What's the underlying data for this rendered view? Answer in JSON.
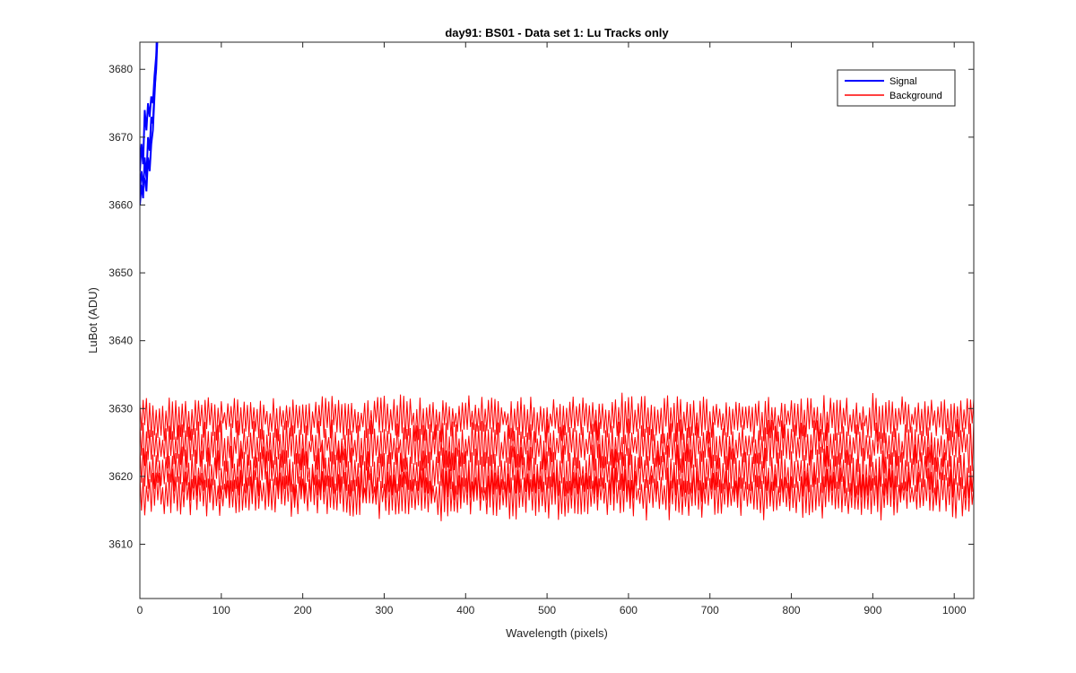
{
  "chart_data": {
    "type": "line",
    "title": "day91: BS01 - Data set 1: Lu Tracks only",
    "xlabel": "Wavelength (pixels)",
    "ylabel": "LuBot (ADU)",
    "xlim": [
      0,
      1024
    ],
    "ylim": [
      3602,
      3684
    ],
    "xticks": [
      0,
      100,
      200,
      300,
      400,
      500,
      600,
      700,
      800,
      900,
      1000
    ],
    "yticks": [
      3610,
      3620,
      3630,
      3640,
      3650,
      3660,
      3670,
      3680
    ],
    "grid": false,
    "legend_position": "top-right",
    "series": [
      {
        "name": "Signal",
        "color": "#0000ff",
        "linewidth": 2,
        "note_points": "rises steeply from ~3660 at x=0 and leaves the top of the axes near x=20",
        "traces": [
          {
            "x": [
              0,
              2,
              4,
              6,
              8,
              10,
              12,
              14,
              16,
              18,
              20,
              22
            ],
            "y": [
              3660,
              3663,
              3661,
              3667,
              3664,
              3670,
              3668,
              3673,
              3672,
              3677,
              3680,
              3686
            ]
          },
          {
            "x": [
              0,
              2,
              4,
              6,
              8,
              10,
              12,
              14,
              16,
              18,
              20,
              22
            ],
            "y": [
              3665,
              3669,
              3666,
              3674,
              3671,
              3675,
              3673,
              3676,
              3675,
              3679,
              3682,
              3688
            ]
          },
          {
            "x": [
              0,
              2,
              4,
              6,
              8,
              10,
              12,
              14,
              16,
              18,
              20,
              22
            ],
            "y": [
              3662,
              3665,
              3663,
              3664,
              3662,
              3667,
              3665,
              3669,
              3671,
              3676,
              3681,
              3690
            ]
          }
        ]
      },
      {
        "name": "Background",
        "color": "#ff0000",
        "linewidth": 1,
        "traces": [
          {
            "x_range": [
              0,
              1024
            ],
            "mean": 3628.5,
            "amplitude": 3.2
          },
          {
            "x_range": [
              0,
              1024
            ],
            "mean": 3624.5,
            "amplitude": 3.5
          },
          {
            "x_range": [
              0,
              1024
            ],
            "mean": 3620.5,
            "amplitude": 3.8
          },
          {
            "x_range": [
              0,
              1024
            ],
            "mean": 3617.5,
            "amplitude": 3.5
          }
        ]
      }
    ]
  }
}
